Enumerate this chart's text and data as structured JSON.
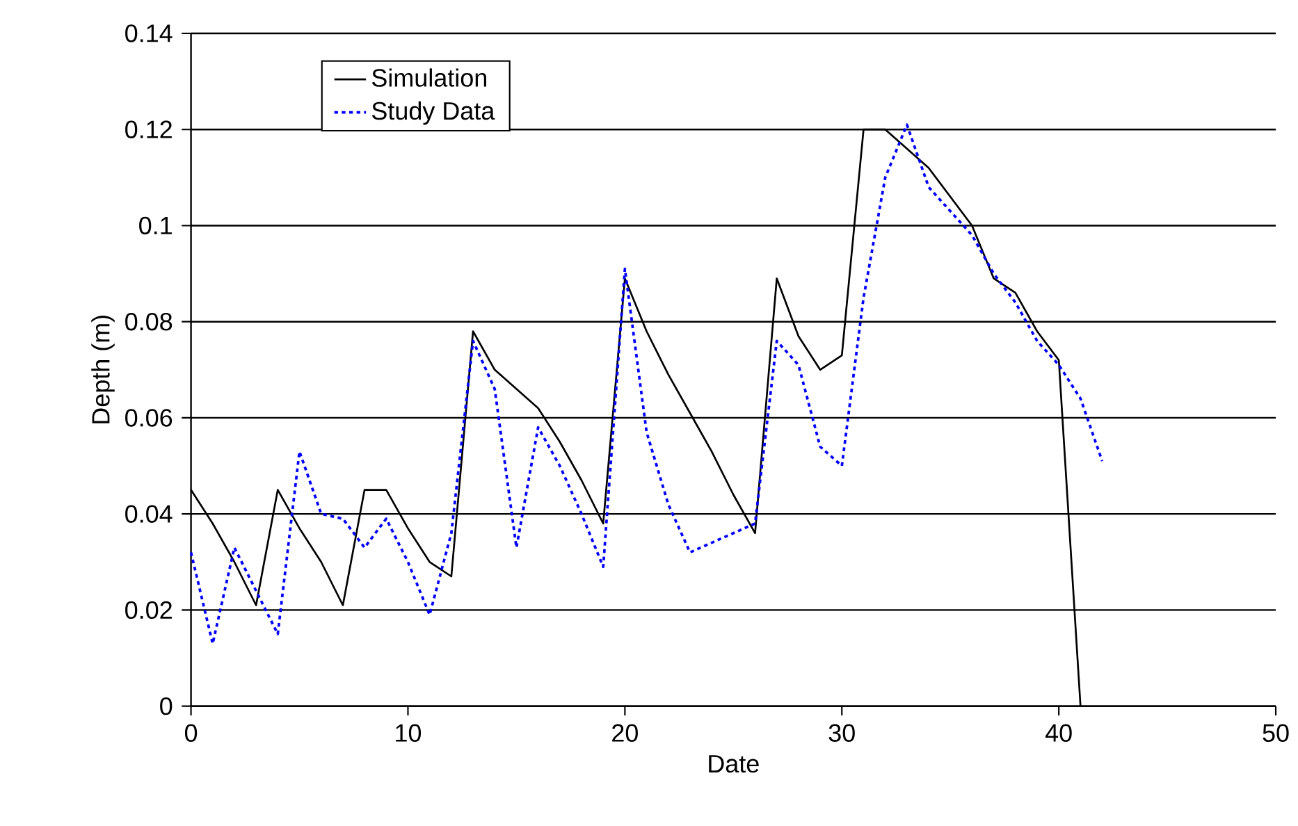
{
  "chart_data": {
    "type": "line",
    "xlabel": "Date",
    "ylabel": "Depth (m)",
    "xlim": [
      0,
      50
    ],
    "xticks": [
      0,
      10,
      20,
      30,
      40,
      50
    ],
    "ylim": [
      0,
      0.14
    ],
    "yticks": [
      0,
      0.02,
      0.04,
      0.06,
      0.08,
      0.1,
      0.12,
      0.14
    ],
    "grid": "y",
    "legend": "top left",
    "series": [
      {
        "name": "Simulation",
        "color": "#000000",
        "line_style": "solid",
        "x": [
          0,
          1,
          2,
          3,
          4,
          5,
          6,
          7,
          8,
          9,
          10,
          11,
          12,
          13,
          14,
          15,
          16,
          17,
          18,
          19,
          20,
          21,
          22,
          23,
          24,
          25,
          26,
          27,
          28,
          29,
          30,
          31,
          32,
          33,
          34,
          35,
          36,
          37,
          38,
          39,
          40,
          41
        ],
        "values": [
          0.045,
          0.038,
          0.03,
          0.021,
          0.045,
          0.037,
          0.03,
          0.021,
          0.045,
          0.045,
          0.037,
          0.03,
          0.027,
          0.078,
          0.07,
          0.066,
          0.062,
          0.055,
          0.047,
          0.038,
          0.089,
          0.078,
          0.069,
          0.061,
          0.053,
          0.044,
          0.036,
          0.089,
          0.077,
          0.07,
          0.073,
          0.12,
          0.12,
          0.116,
          0.112,
          0.106,
          0.1,
          0.089,
          0.086,
          0.078,
          0.072,
          0.0
        ]
      },
      {
        "name": "Study Data",
        "color": "#0000ff",
        "line_style": "dotted",
        "x": [
          0,
          1,
          2,
          3,
          4,
          5,
          6,
          7,
          8,
          9,
          10,
          11,
          12,
          13,
          14,
          15,
          16,
          17,
          18,
          19,
          20,
          21,
          22,
          23,
          24,
          25,
          26,
          27,
          28,
          29,
          30,
          31,
          32,
          33,
          34,
          35,
          36,
          37,
          38,
          39,
          40,
          41,
          42
        ],
        "values": [
          0.032,
          0.013,
          0.033,
          0.024,
          0.015,
          0.053,
          0.04,
          0.039,
          0.033,
          0.039,
          0.03,
          0.019,
          0.036,
          0.076,
          0.066,
          0.033,
          0.058,
          0.05,
          0.04,
          0.029,
          0.091,
          0.057,
          0.042,
          0.032,
          0.034,
          0.036,
          0.038,
          0.076,
          0.071,
          0.054,
          0.05,
          0.085,
          0.11,
          0.121,
          0.108,
          0.103,
          0.098,
          0.09,
          0.084,
          0.076,
          0.071,
          0.064,
          0.051
        ]
      }
    ]
  }
}
